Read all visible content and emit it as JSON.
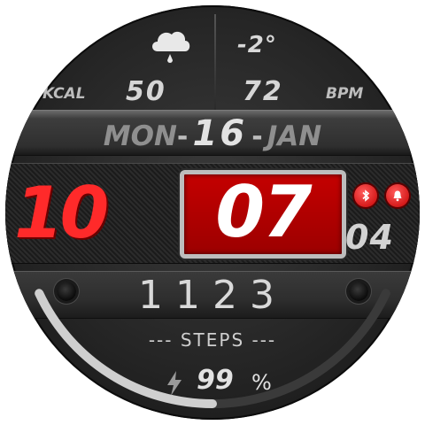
{
  "weather": {
    "icon": "cloud-rain-icon",
    "temperature": "-2°"
  },
  "metrics": {
    "kcal_label": "KCAL",
    "kcal_value": "50",
    "heart_rate_value": "72",
    "heart_rate_label": "BPM"
  },
  "date": {
    "weekday": "MON",
    "separator": "-",
    "day": "16",
    "month": "JAN"
  },
  "time": {
    "hour": "10",
    "minute": "07",
    "seconds": "04"
  },
  "status_icons": [
    "bluetooth-icon",
    "alarm-icon"
  ],
  "steps": {
    "value": "1123",
    "label": "--- STEPS ---",
    "goal_progress": 0.5
  },
  "battery": {
    "icon": "lightning-bolt-icon",
    "value": "99",
    "unit": "%"
  },
  "colors": {
    "accent": "#e10000",
    "digits_light": "#e3e3e3",
    "background": "#262626"
  }
}
